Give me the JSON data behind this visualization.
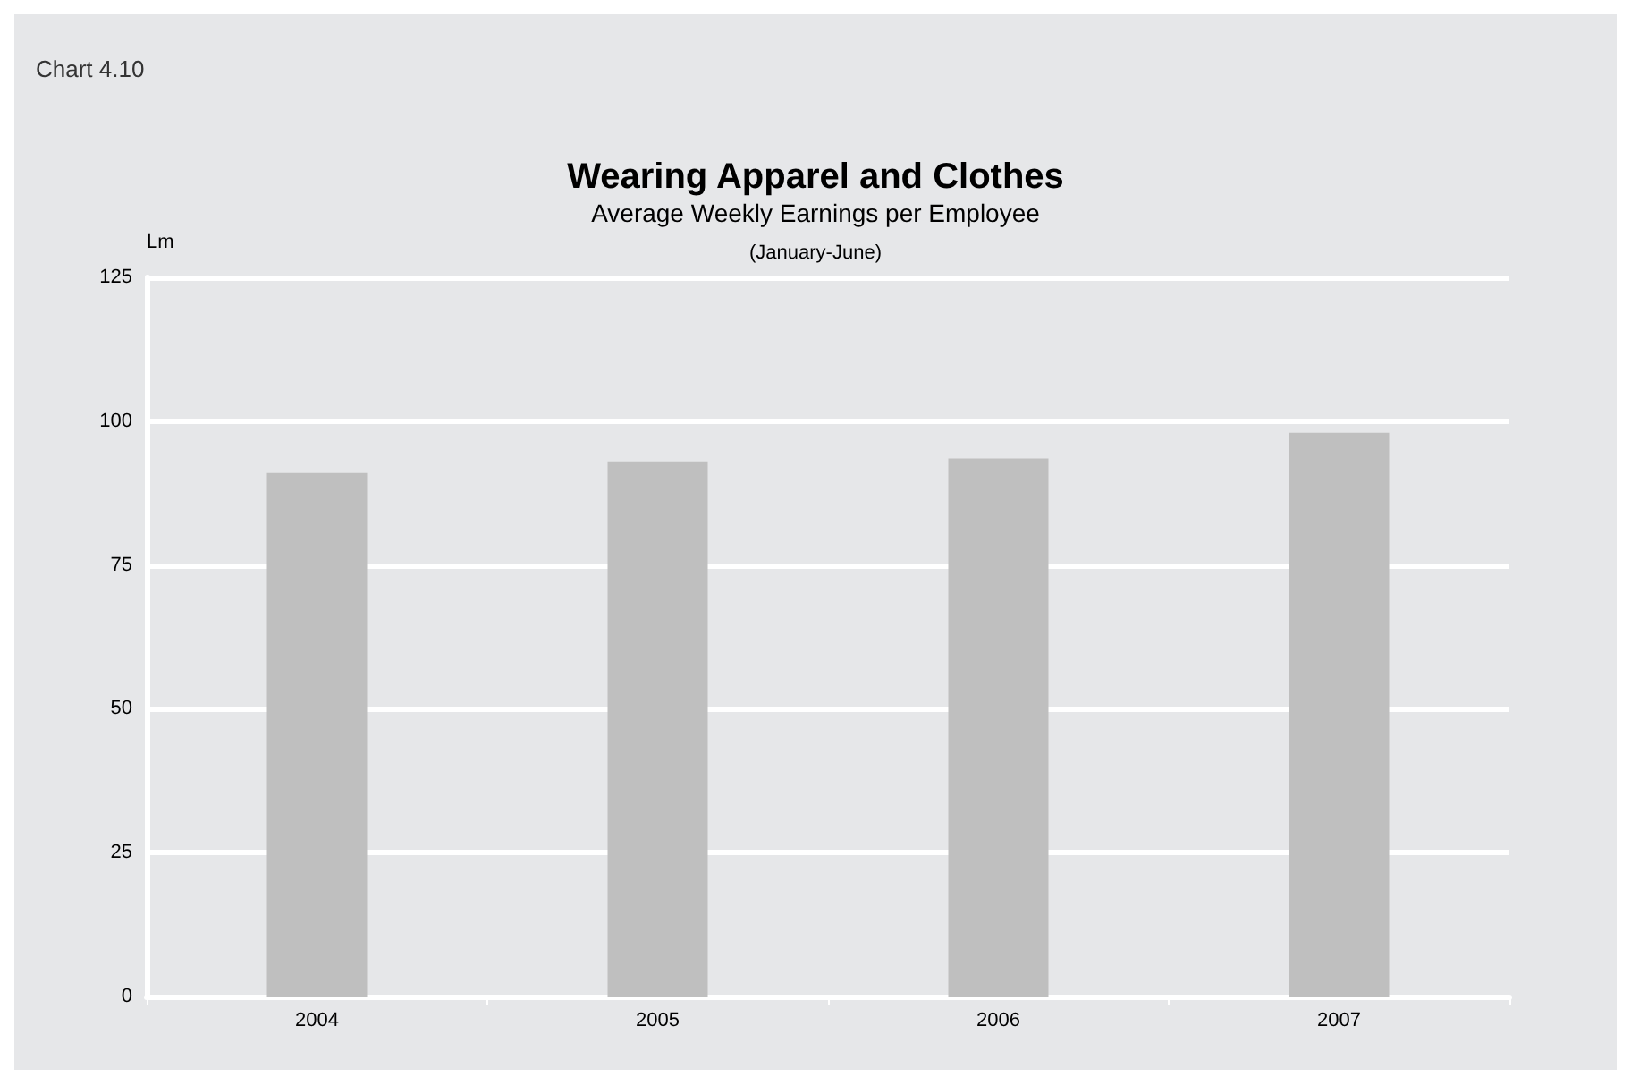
{
  "chart_data": {
    "type": "bar",
    "title": "Wearing Apparel and Clothes",
    "subtitle": "Average Weekly Earnings per Employee",
    "annotations": [
      "Chart 4.10",
      "(January-June)"
    ],
    "ylabel": "Lm",
    "categories": [
      "2004",
      "2005",
      "2006",
      "2007"
    ],
    "values": [
      91,
      93,
      93.5,
      98
    ],
    "color": "#bfbfbf",
    "ylim": [
      0,
      125
    ],
    "yticks": [
      0,
      25,
      50,
      75,
      100,
      125
    ],
    "grid": "y"
  }
}
